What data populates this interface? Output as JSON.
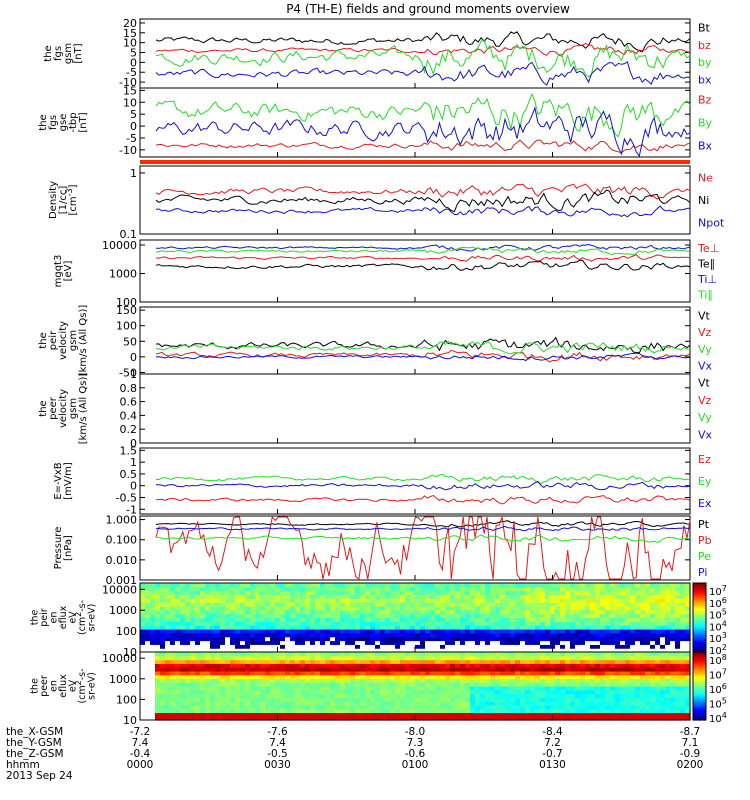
{
  "title": "P4 (TH-E) fields and ground moments overview",
  "chart_data": {
    "type": "line",
    "title": "P4 (TH-E) fields and ground moments overview",
    "xaxis": {
      "rows": [
        {
          "label": "the_X-GSM",
          "values": [
            "-7.2",
            "-7.6",
            "-8.0",
            "-8.4",
            "-8.7"
          ]
        },
        {
          "label": "the_Y-GSM",
          "values": [
            "7.4",
            "7.4",
            "7.3",
            "7.2",
            "7.1"
          ]
        },
        {
          "label": "the_Z-GSM",
          "values": [
            "-0.4",
            "-0.5",
            "-0.6",
            "-0.7",
            "-0.9"
          ]
        },
        {
          "label": "hhmm",
          "values": [
            "0000",
            "0030",
            "0100",
            "0130",
            "0200"
          ]
        }
      ],
      "date": "2013 Sep 24",
      "time_range": [
        "0000",
        "0200"
      ]
    },
    "panels": [
      {
        "id": "fgs-gsm",
        "ylabel": [
          "the",
          "fgs",
          "gsm",
          "[nT]"
        ],
        "ylim": [
          -13,
          22
        ],
        "yticks": [
          20,
          15,
          10,
          5,
          0,
          -5,
          -10
        ],
        "scale": "linear",
        "series": [
          {
            "name": "Bt",
            "color": "#000000",
            "base": 11,
            "amp": 2.5
          },
          {
            "name": "bz",
            "color": "#e31a1c",
            "base": 6,
            "amp": 1.5
          },
          {
            "name": "by",
            "color": "#22dd22",
            "base": 3,
            "amp": 5
          },
          {
            "name": "bx",
            "color": "#1010cc",
            "base": -6,
            "amp": 3
          }
        ]
      },
      {
        "id": "fgs-gse-tbp",
        "ylabel": [
          "the",
          "fgs",
          "gse",
          "-tbp",
          "[nT]"
        ],
        "ylim": [
          -13,
          16
        ],
        "yticks": [
          15,
          10,
          5,
          0,
          -5,
          -10
        ],
        "scale": "linear",
        "series": [
          {
            "name": "Bz",
            "color": "#e31a1c",
            "base": -8,
            "amp": 1.5
          },
          {
            "name": "By",
            "color": "#22dd22",
            "base": 6,
            "amp": 5
          },
          {
            "name": "Bx",
            "color": "#1010cc",
            "base": -1,
            "amp": 5
          }
        ]
      },
      {
        "id": "density",
        "ylabel": [
          "Density",
          "[1/cc]",
          "[cm^-3]"
        ],
        "ylim": [
          0.1,
          1.3
        ],
        "yticks": [
          1.0,
          0.1
        ],
        "scale": "log",
        "series": [
          {
            "name": "Ne",
            "color": "#e31a1c",
            "base": 0.5,
            "amp": 0.05
          },
          {
            "name": "Ni",
            "color": "#000000",
            "base": 0.36,
            "amp": 0.05
          },
          {
            "name": "Npot",
            "color": "#1010cc",
            "base": 0.24,
            "amp": 0.01
          }
        ]
      },
      {
        "id": "mgqt3",
        "ylabel": [
          "mgqt3",
          "[eV]"
        ],
        "ylim": [
          100,
          15000
        ],
        "yticks": [
          10000,
          1000,
          100
        ],
        "scale": "log",
        "series": [
          {
            "name": "Te⊥",
            "color": "#e31a1c",
            "base": 3500,
            "amp": 300
          },
          {
            "name": "Te∥",
            "color": "#000000",
            "base": 1800,
            "amp": 300
          },
          {
            "name": "Ti⊥",
            "color": "#1010cc",
            "base": 8000,
            "amp": 500
          },
          {
            "name": "Ti∥",
            "color": "#22dd22",
            "base": 6000,
            "amp": 500
          }
        ]
      },
      {
        "id": "peir-velocity",
        "ylabel": [
          "the",
          "peir",
          "velocity",
          "gsm",
          "[km/s (All Qs)]"
        ],
        "ylim": [
          -55,
          160
        ],
        "yticks": [
          150,
          100,
          50,
          0,
          -50
        ],
        "scale": "linear",
        "series": [
          {
            "name": "Vt",
            "color": "#000000",
            "base": 35,
            "amp": 15
          },
          {
            "name": "Vz",
            "color": "#e31a1c",
            "base": 5,
            "amp": 10
          },
          {
            "name": "Vy",
            "color": "#22dd22",
            "base": 30,
            "amp": 12
          },
          {
            "name": "Vx",
            "color": "#1010cc",
            "base": 0,
            "amp": 6
          }
        ]
      },
      {
        "id": "peer-velocity",
        "ylabel": [
          "the",
          "peer",
          "velocity",
          "gsm",
          "[km/s (All Qs)]"
        ],
        "ylim": [
          0,
          1.0
        ],
        "yticks": [
          1.0,
          0.8,
          0.6,
          0.4,
          0.2,
          0.0
        ],
        "scale": "linear",
        "series": [
          {
            "name": "Vt",
            "color": "#000000"
          },
          {
            "name": "Vz",
            "color": "#e31a1c"
          },
          {
            "name": "Vy",
            "color": "#22dd22"
          },
          {
            "name": "Vx",
            "color": "#1010cc"
          }
        ]
      },
      {
        "id": "e-field",
        "ylabel": [
          "E=-VxB",
          "[mV/m]"
        ],
        "ylim": [
          -1.2,
          1.6
        ],
        "yticks": [
          1.5,
          1.0,
          0.5,
          0.0,
          -0.5,
          -1.0
        ],
        "scale": "linear",
        "series": [
          {
            "name": "Ez",
            "color": "#e31a1c",
            "base": -0.6,
            "amp": 0.1
          },
          {
            "name": "Ey",
            "color": "#22dd22",
            "base": 0.3,
            "amp": 0.1
          },
          {
            "name": "Ex",
            "color": "#1010cc",
            "base": 0.0,
            "amp": 0.1
          }
        ]
      },
      {
        "id": "pressure",
        "ylabel": [
          "Pressure",
          "[nPa]"
        ],
        "ylim": [
          0.001,
          1.5
        ],
        "yticks": [
          1.0,
          0.1,
          0.01,
          0.001
        ],
        "ticklabels": [
          "1.000",
          "0.100",
          "0.010",
          "0.001"
        ],
        "scale": "log",
        "series": [
          {
            "name": "Pt",
            "color": "#000000",
            "base": 0.6,
            "amp": 0.05
          },
          {
            "name": "Pb",
            "color": "#e31a1c",
            "base": 0.05,
            "amp": 0.3
          },
          {
            "name": "Pe",
            "color": "#22dd22",
            "base": 0.12,
            "amp": 0.02
          },
          {
            "name": "Pi",
            "color": "#1010cc",
            "base": 0.35,
            "amp": 0.03
          }
        ]
      }
    ],
    "spectrograms": [
      {
        "id": "peir-en-eflux",
        "ylabel": [
          "the",
          "peir",
          "en",
          "eflux",
          "eV",
          "(cm^2-s-",
          "sr-eV)"
        ],
        "ylim": [
          10,
          20000
        ],
        "yticks": [
          10000,
          1000,
          100,
          10
        ],
        "scale": "log",
        "colorbar": {
          "ticks": [
            "10^7",
            "10^6",
            "10^5",
            "10^4",
            "10^3",
            "10^2"
          ]
        }
      },
      {
        "id": "peer-en-eflux",
        "ylabel": [
          "the",
          "peer",
          "en",
          "eflux",
          "eV",
          "(cm^2-s-",
          "sr-eV)"
        ],
        "ylim": [
          10,
          20000
        ],
        "yticks": [
          10000,
          1000,
          100,
          10
        ],
        "scale": "log",
        "colorbar": {
          "ticks": [
            "10^8",
            "10^7",
            "10^6",
            "10^5",
            "10^4"
          ]
        }
      }
    ]
  }
}
